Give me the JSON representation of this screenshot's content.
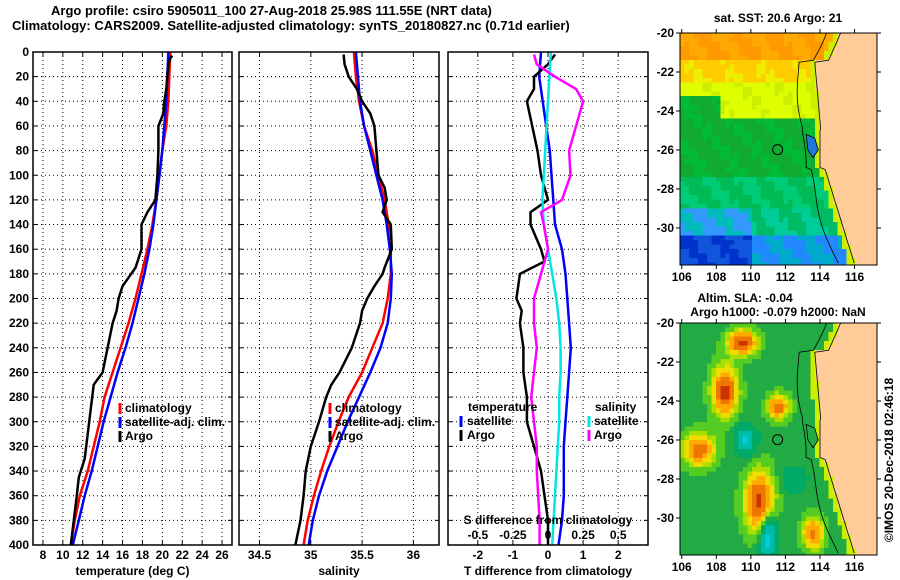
{
  "header": {
    "line1": "Argo profile: csiro 5905011_100 27-Aug-2018 25.98S 111.55E (NRT data)",
    "line2": "Climatology: CARS2009. Satellite-adjusted climatology: synTS_20180827.nc (0.71d earlier)"
  },
  "credit": "©IMOS 20-Dec-2018 02:46:18",
  "colors": {
    "climatology": "#ff0000",
    "satellite": "#0000ff",
    "argo": "#000000",
    "sal_satellite": "#00e5e5",
    "sal_argo": "#ff00ff",
    "land": "#ffcc99"
  },
  "chart_data": [
    {
      "type": "line",
      "title": "",
      "xlabel": "temperature (deg C)",
      "ylabel": "",
      "xlim": [
        7,
        27
      ],
      "ylim": [
        400,
        0
      ],
      "xticks": [
        8,
        10,
        12,
        14,
        16,
        18,
        20,
        22,
        24,
        26
      ],
      "xtick_labels": [
        "8",
        "10",
        "12",
        "14",
        "16",
        "18",
        "20",
        "22",
        "24",
        "26"
      ],
      "yticks": [
        0,
        20,
        40,
        60,
        80,
        100,
        120,
        140,
        160,
        180,
        200,
        220,
        240,
        260,
        280,
        300,
        320,
        340,
        360,
        380,
        400
      ],
      "ytick_labels": [
        "0",
        "20",
        "40",
        "60",
        "80",
        "100",
        "120",
        "140",
        "160",
        "180",
        "200",
        "220",
        "240",
        "260",
        "280",
        "300",
        "320",
        "340",
        "360",
        "380",
        "400"
      ],
      "grid": true,
      "legend": {
        "position": "center-right",
        "entries": [
          "climatology",
          "satellite-adj. clim.",
          "Argo"
        ]
      },
      "series": [
        {
          "name": "climatology",
          "color": "#ff0000",
          "depth": [
            0,
            20,
            40,
            60,
            80,
            100,
            120,
            140,
            160,
            180,
            200,
            220,
            240,
            260,
            280,
            300,
            320,
            340,
            360,
            380,
            400
          ],
          "values": [
            20.8,
            20.7,
            20.6,
            20.4,
            20.0,
            19.7,
            19.4,
            19.0,
            18.5,
            17.9,
            17.3,
            16.6,
            15.8,
            15.0,
            14.2,
            13.7,
            13.1,
            12.5,
            11.7,
            11.2,
            10.8
          ]
        },
        {
          "name": "satellite-adj. clim.",
          "color": "#0000ff",
          "depth": [
            0,
            20,
            40,
            60,
            80,
            100,
            120,
            140,
            160,
            180,
            200,
            220,
            240,
            260,
            280,
            300,
            320,
            340,
            360,
            380,
            400
          ],
          "values": [
            20.6,
            20.5,
            20.4,
            20.2,
            20.0,
            19.7,
            19.4,
            19.1,
            18.7,
            18.2,
            17.6,
            17.0,
            16.3,
            15.5,
            14.8,
            14.1,
            13.5,
            12.9,
            12.2,
            11.6,
            11.0
          ]
        },
        {
          "name": "Argo",
          "color": "#000000",
          "depth": [
            3,
            5,
            10,
            20,
            30,
            40,
            50,
            60,
            80,
            100,
            120,
            130,
            140,
            160,
            175,
            190,
            200,
            210,
            220,
            240,
            260,
            270,
            290,
            310,
            330,
            345,
            360,
            380,
            400
          ],
          "values": [
            21.0,
            20.8,
            20.6,
            20.5,
            20.4,
            20.2,
            20.1,
            19.6,
            19.6,
            19.5,
            19.3,
            18.5,
            17.9,
            17.9,
            17.3,
            16.0,
            15.6,
            15.4,
            15.0,
            14.5,
            14.0,
            13.1,
            12.8,
            12.5,
            12.2,
            11.6,
            11.4,
            11.1,
            10.8
          ]
        }
      ]
    },
    {
      "type": "line",
      "title": "",
      "xlabel": "salinity",
      "ylabel": "",
      "xlim": [
        34.3,
        36.25
      ],
      "ylim": [
        400,
        0
      ],
      "xticks": [
        34.5,
        35,
        35.5,
        36
      ],
      "xtick_labels": [
        "34.5",
        "35",
        "35.5",
        "36"
      ],
      "grid": true,
      "legend": {
        "position": "center-right",
        "entries": [
          "climatology",
          "satellite-adj. clim.",
          "Argo"
        ]
      },
      "series": [
        {
          "name": "climatology",
          "color": "#ff0000",
          "depth": [
            0,
            20,
            40,
            60,
            80,
            100,
            120,
            140,
            160,
            180,
            200,
            220,
            240,
            260,
            280,
            300,
            320,
            340,
            360,
            380,
            400
          ],
          "values": [
            35.42,
            35.44,
            35.47,
            35.52,
            35.6,
            35.66,
            35.72,
            35.76,
            35.78,
            35.78,
            35.75,
            35.7,
            35.6,
            35.5,
            35.37,
            35.27,
            35.18,
            35.1,
            35.03,
            34.97,
            34.93
          ]
        },
        {
          "name": "satellite-adj. clim.",
          "color": "#0000ff",
          "depth": [
            0,
            20,
            40,
            60,
            80,
            100,
            120,
            140,
            160,
            180,
            200,
            220,
            240,
            260,
            280,
            300,
            320,
            340,
            360,
            380,
            400
          ],
          "values": [
            35.44,
            35.46,
            35.48,
            35.52,
            35.58,
            35.64,
            35.7,
            35.74,
            35.77,
            35.79,
            35.78,
            35.75,
            35.68,
            35.58,
            35.47,
            35.36,
            35.26,
            35.16,
            35.08,
            35.02,
            34.98
          ]
        },
        {
          "name": "Argo",
          "color": "#000000",
          "depth": [
            2,
            10,
            20,
            30,
            40,
            50,
            60,
            80,
            100,
            110,
            120,
            130,
            140,
            160,
            175,
            180,
            190,
            200,
            210,
            220,
            240,
            260,
            270,
            280,
            300,
            320,
            340,
            360,
            380,
            400
          ],
          "values": [
            35.32,
            35.33,
            35.37,
            35.45,
            35.5,
            35.58,
            35.62,
            35.64,
            35.66,
            35.72,
            35.74,
            35.7,
            35.78,
            35.79,
            35.72,
            35.7,
            35.62,
            35.55,
            35.5,
            35.48,
            35.4,
            35.28,
            35.2,
            35.15,
            35.08,
            35.0,
            34.95,
            34.93,
            34.9,
            34.85
          ]
        }
      ]
    },
    {
      "type": "line",
      "title": "",
      "xlabel": "T difference from climatology",
      "x2label": "S difference from climatology",
      "xlim": [
        -2.85,
        2.85
      ],
      "x2lim": [
        -0.7125,
        0.7125
      ],
      "ylim": [
        400,
        0
      ],
      "xticks": [
        -2,
        -1,
        0,
        1,
        2
      ],
      "xtick_labels": [
        "-2",
        "-1",
        "0",
        "1",
        "2"
      ],
      "x2ticks": [
        -0.5,
        -0.25,
        0,
        0.25,
        0.5
      ],
      "x2tick_labels": [
        "-0.5",
        "-0.25",
        "0",
        "0.25",
        "0.5"
      ],
      "grid": true,
      "legend": {
        "position": "lower",
        "groups": [
          {
            "title": "temperature",
            "entries": [
              "satellite",
              "Argo"
            ]
          },
          {
            "title": "salinity",
            "entries": [
              "satellite",
              "Argo"
            ]
          }
        ]
      },
      "series": [
        {
          "name": "temperature satellite",
          "axis": "T",
          "color": "#0000ff",
          "depth": [
            0,
            20,
            40,
            60,
            80,
            100,
            120,
            140,
            160,
            180,
            200,
            220,
            240,
            260,
            280,
            300,
            320,
            340,
            360,
            380,
            400
          ],
          "values": [
            -0.2,
            -0.25,
            -0.15,
            -0.05,
            0.05,
            0.1,
            0.15,
            0.2,
            0.4,
            0.5,
            0.55,
            0.6,
            0.65,
            0.6,
            0.55,
            0.5,
            0.45,
            0.45,
            0.45,
            0.4,
            0.3
          ]
        },
        {
          "name": "temperature Argo",
          "axis": "T",
          "color": "#000000",
          "depth": [
            2,
            10,
            20,
            30,
            40,
            60,
            80,
            100,
            120,
            130,
            140,
            160,
            170,
            180,
            190,
            200,
            210,
            220,
            240,
            260,
            280,
            300,
            320,
            340,
            360,
            380,
            400
          ],
          "values": [
            0.2,
            0.0,
            -0.4,
            -0.4,
            -0.6,
            -0.45,
            -0.3,
            -0.2,
            0.0,
            -0.5,
            -0.5,
            -0.2,
            -0.1,
            -0.8,
            -0.85,
            -0.9,
            -0.75,
            -0.8,
            -0.7,
            -0.7,
            -0.6,
            -0.6,
            -0.4,
            -0.2,
            -0.1,
            0.0,
            0.0
          ]
        },
        {
          "name": "salinity satellite",
          "axis": "S",
          "color": "#00e5e5",
          "depth": [
            0,
            20,
            40,
            60,
            80,
            100,
            120,
            140,
            160,
            180,
            200,
            220,
            240,
            260,
            280,
            300,
            320,
            340,
            360,
            380,
            400
          ],
          "values": [
            0.02,
            0.01,
            0.0,
            -0.01,
            -0.02,
            -0.03,
            -0.04,
            -0.03,
            0.0,
            0.03,
            0.06,
            0.08,
            0.09,
            0.09,
            0.08,
            0.08,
            0.07,
            0.06,
            0.05,
            0.04,
            0.03
          ]
        },
        {
          "name": "salinity Argo",
          "axis": "S",
          "color": "#ff00ff",
          "depth": [
            2,
            10,
            20,
            30,
            40,
            60,
            80,
            100,
            120,
            130,
            140,
            160,
            180,
            200,
            220,
            240,
            260,
            280,
            300,
            320,
            340,
            360,
            380,
            400
          ],
          "values": [
            -0.1,
            -0.08,
            0.05,
            0.2,
            0.25,
            0.2,
            0.15,
            0.16,
            0.1,
            -0.05,
            -0.03,
            0.0,
            -0.05,
            -0.1,
            -0.1,
            -0.08,
            -0.1,
            -0.12,
            -0.1,
            -0.08,
            -0.08,
            -0.07,
            -0.06,
            -0.06
          ]
        }
      ]
    },
    {
      "type": "heatmap",
      "title": "sat. SST: 20.6 Argo: 21",
      "xlim": [
        105.9,
        117.3
      ],
      "ylim": [
        -31.9,
        -20
      ],
      "xticks": [
        106,
        108,
        110,
        112,
        114,
        116
      ],
      "xtick_labels": [
        "106",
        "108",
        "110",
        "112",
        "114",
        "116"
      ],
      "yticks": [
        -20,
        -22,
        -24,
        -26,
        -28,
        -30
      ],
      "ytick_labels": [
        "-20",
        "-22",
        "-24",
        "-26",
        "-28",
        "-30"
      ],
      "marker": {
        "lon": 111.55,
        "lat": -25.98
      },
      "description": "Satellite SST field, warm (orange/yellow) in north, green mid, blue in southwest; land in beige to the east"
    },
    {
      "type": "heatmap",
      "title": "Altim. SLA: -0.04",
      "subtitle": "Argo h1000: -0.079 h2000: NaN",
      "xlim": [
        105.9,
        117.3
      ],
      "ylim": [
        -31.9,
        -20
      ],
      "xticks": [
        106,
        108,
        110,
        112,
        114,
        116
      ],
      "xtick_labels": [
        "106",
        "108",
        "110",
        "112",
        "114",
        "116"
      ],
      "yticks": [
        -20,
        -22,
        -24,
        -26,
        -28,
        -30
      ],
      "ytick_labels": [
        "-20",
        "-22",
        "-24",
        "-26",
        "-28",
        "-30"
      ],
      "marker": {
        "lon": 111.55,
        "lat": -25.98
      },
      "description": "Altimetry sea level anomaly field, mostly green with yellow/orange eddies and cyan lows; land in beige to the east"
    }
  ]
}
